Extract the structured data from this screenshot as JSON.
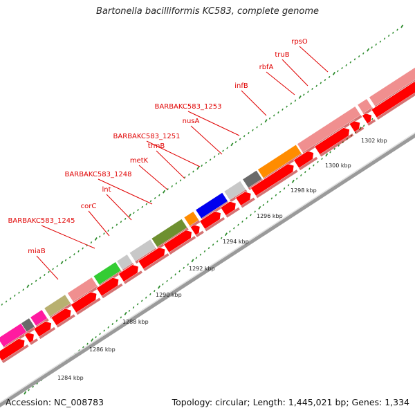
{
  "title": "Bartonella bacilliformis KC583, complete genome",
  "footer": {
    "accession": "Accession: NC_008783",
    "summary": "Topology: circular; Length: 1,445,021 bp; Genes: 1,334"
  },
  "colors": {
    "backbone": "#9a9a9a",
    "cds": "#ff0000",
    "rrna_gene_pink": "#f08f8f",
    "tick": "#2a8a2a",
    "label": "#e00000"
  },
  "gene_labels": [
    {
      "text": "miaB"
    },
    {
      "text": "BARBAKC583_1245"
    },
    {
      "text": "corC"
    },
    {
      "text": "lnt"
    },
    {
      "text": "BARBAKC583_1248"
    },
    {
      "text": "metK"
    },
    {
      "text": "trmB"
    },
    {
      "text": "BARBAKC583_1251"
    },
    {
      "text": "nusA"
    },
    {
      "text": "BARBAKC583_1253"
    },
    {
      "text": "infB"
    },
    {
      "text": "rbfA"
    },
    {
      "text": "truB"
    },
    {
      "text": "rpsO"
    }
  ],
  "kbp_labels": [
    {
      "text": "1284 kbp"
    },
    {
      "text": "1286 kbp"
    },
    {
      "text": "1288 kbp"
    },
    {
      "text": "1290 kbp"
    },
    {
      "text": "1292 kbp"
    },
    {
      "text": "1294 kbp"
    },
    {
      "text": "1296 kbp"
    },
    {
      "text": "1298 kbp"
    },
    {
      "text": "1300 kbp"
    },
    {
      "text": "1302 kbp"
    }
  ]
}
